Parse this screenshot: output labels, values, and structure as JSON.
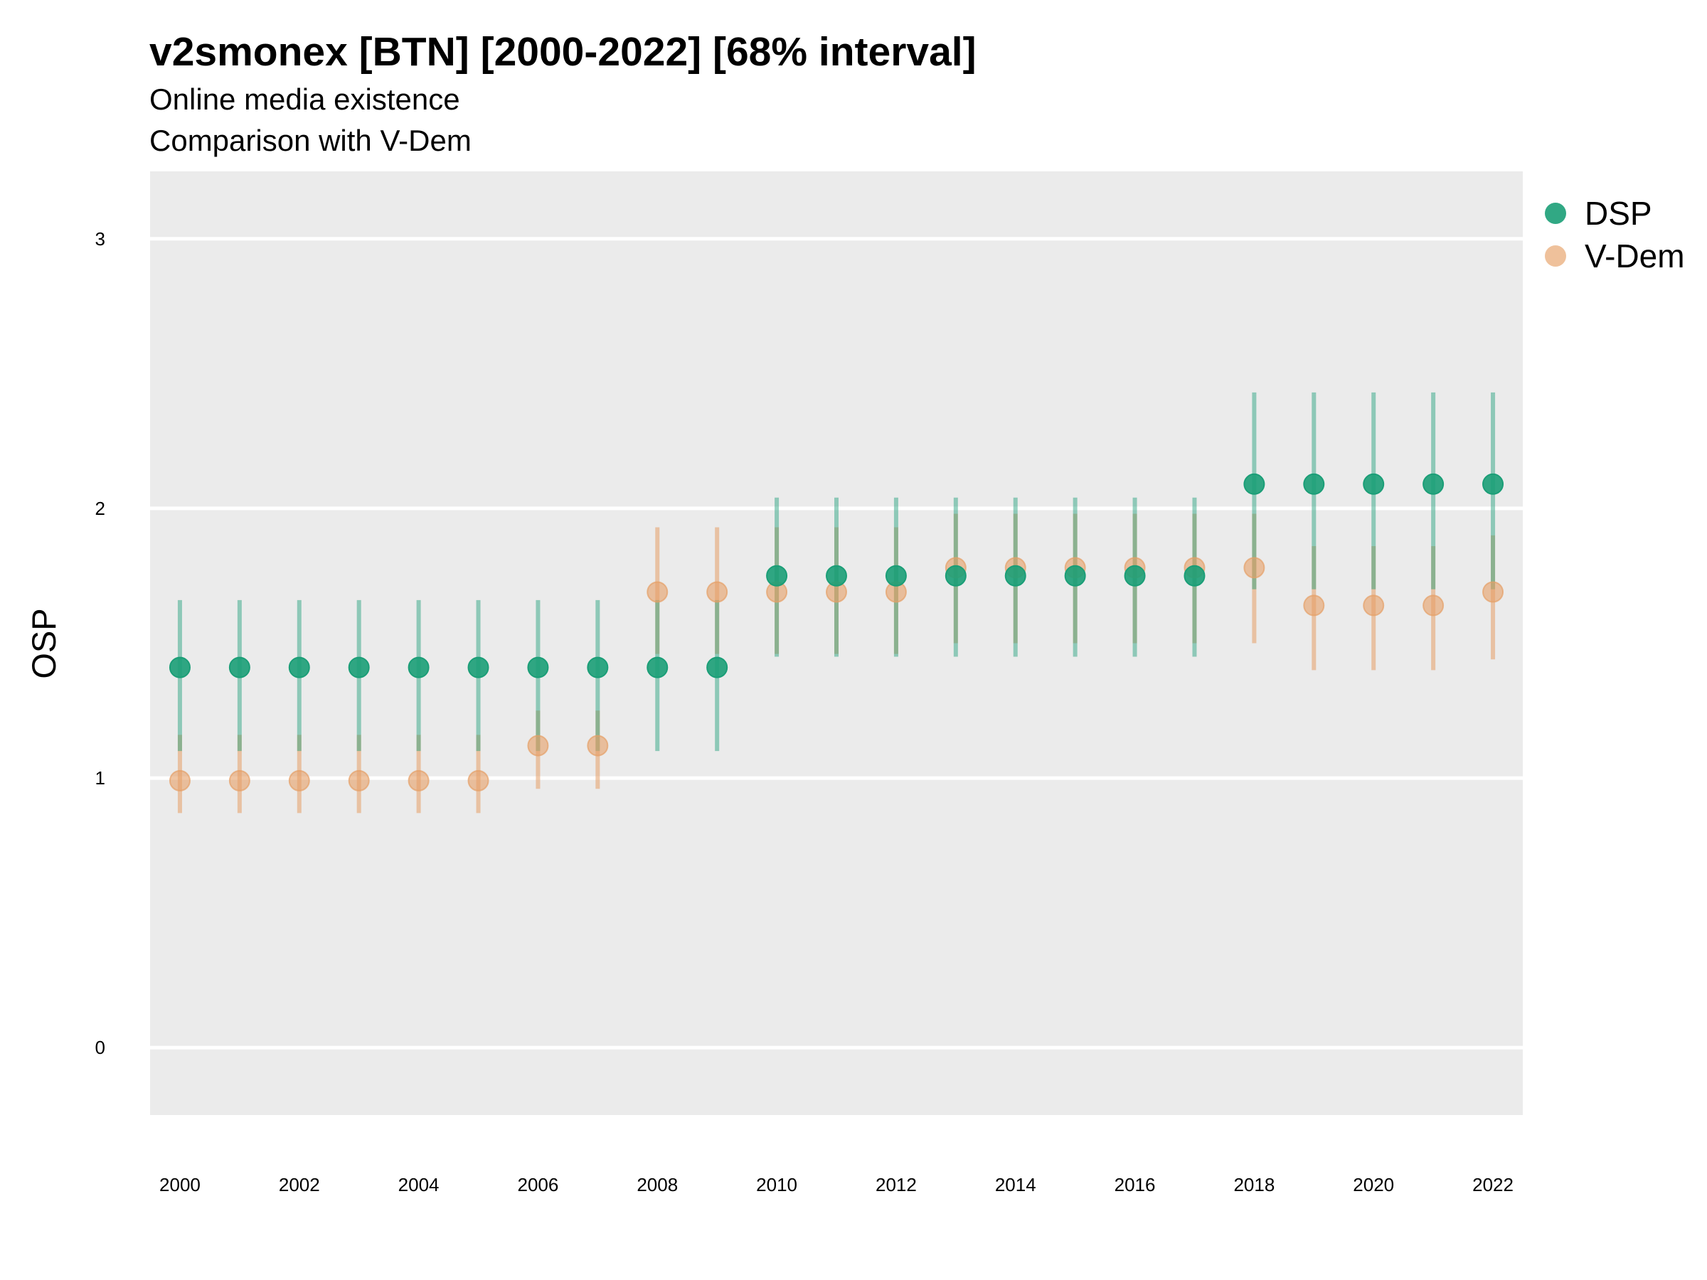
{
  "title": "v2smonex [BTN] [2000-2022] [68% interval]",
  "subtitle_lines": [
    "Online media existence",
    "Comparison with V-Dem"
  ],
  "chart_data": {
    "type": "scatter",
    "title": "v2smonex [BTN] [2000-2022] [68% interval]",
    "subtitle": "Online media existence / Comparison with V-Dem",
    "xlabel": "",
    "ylabel": "OSP",
    "ylim": [
      -0.25,
      3.25
    ],
    "xlim": [
      1999.5,
      2022.5
    ],
    "yticks": [
      0,
      1,
      2,
      3
    ],
    "xticks": [
      2000,
      2002,
      2004,
      2006,
      2008,
      2010,
      2012,
      2014,
      2016,
      2018,
      2020,
      2022
    ],
    "grid": "horizontal major lines",
    "background": "#EBEBEB",
    "legend_position": "right-top",
    "x": [
      2000,
      2001,
      2002,
      2003,
      2004,
      2005,
      2006,
      2007,
      2008,
      2009,
      2010,
      2011,
      2012,
      2013,
      2014,
      2015,
      2016,
      2017,
      2018,
      2019,
      2020,
      2021,
      2022
    ],
    "series": [
      {
        "name": "V-Dem",
        "color": "#E69F66",
        "values": [
          0.99,
          0.99,
          0.99,
          0.99,
          0.99,
          0.99,
          1.12,
          1.12,
          1.69,
          1.69,
          1.69,
          1.69,
          1.69,
          1.78,
          1.78,
          1.78,
          1.78,
          1.78,
          1.78,
          1.64,
          1.64,
          1.64,
          1.69
        ],
        "lower": [
          0.87,
          0.87,
          0.87,
          0.87,
          0.87,
          0.87,
          0.96,
          0.96,
          1.46,
          1.46,
          1.46,
          1.46,
          1.46,
          1.5,
          1.5,
          1.5,
          1.5,
          1.5,
          1.5,
          1.4,
          1.4,
          1.4,
          1.44
        ],
        "upper": [
          1.16,
          1.16,
          1.16,
          1.16,
          1.16,
          1.16,
          1.25,
          1.25,
          1.93,
          1.93,
          1.93,
          1.93,
          1.93,
          1.98,
          1.98,
          1.98,
          1.98,
          1.98,
          1.98,
          1.86,
          1.86,
          1.86,
          1.9
        ]
      },
      {
        "name": "DSP",
        "color": "#1B9E77",
        "values": [
          1.41,
          1.41,
          1.41,
          1.41,
          1.41,
          1.41,
          1.41,
          1.41,
          1.41,
          1.41,
          1.75,
          1.75,
          1.75,
          1.75,
          1.75,
          1.75,
          1.75,
          1.75,
          2.09,
          2.09,
          2.09,
          2.09,
          2.09
        ],
        "lower": [
          1.1,
          1.1,
          1.1,
          1.1,
          1.1,
          1.1,
          1.1,
          1.1,
          1.1,
          1.1,
          1.45,
          1.45,
          1.45,
          1.45,
          1.45,
          1.45,
          1.45,
          1.45,
          1.7,
          1.7,
          1.7,
          1.7,
          1.7
        ],
        "upper": [
          1.66,
          1.66,
          1.66,
          1.66,
          1.66,
          1.66,
          1.66,
          1.66,
          1.66,
          1.66,
          2.04,
          2.04,
          2.04,
          2.04,
          2.04,
          2.04,
          2.04,
          2.04,
          2.43,
          2.43,
          2.43,
          2.43,
          2.43
        ]
      }
    ]
  },
  "legend": [
    {
      "label": "DSP",
      "color": "#1B9E77"
    },
    {
      "label": "V-Dem",
      "color": "#E69F66"
    }
  ]
}
